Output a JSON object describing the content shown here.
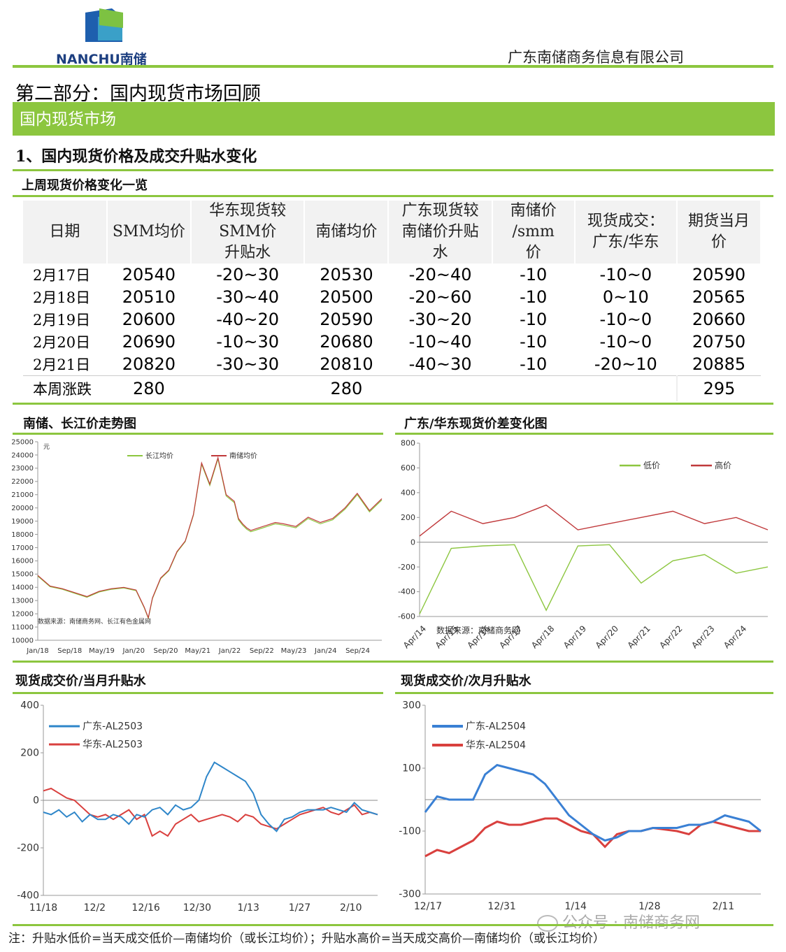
{
  "header": {
    "logo_text": "NANCHU南储",
    "company": "广东南储商务信息有限公司"
  },
  "part_title": "第二部分：国内现货市场回顾",
  "banner": "国内现货市场",
  "section1_title": "1、国内现货价格及成交升贴水变化",
  "table_title": "上周现货价格变化一览",
  "table": {
    "headers": [
      "日期",
      "SMM均价",
      "华东现货较SMM价升贴水",
      "南储均价",
      "广东现货较南储价升贴水",
      "南储价/smm价",
      "现货成交：广东/华东",
      "期货当月价"
    ],
    "rows": [
      [
        "2月17日",
        "20540",
        "-20~30",
        "20530",
        "-20~40",
        "-10",
        "-10~0",
        "20590"
      ],
      [
        "2月18日",
        "20510",
        "-30~40",
        "20500",
        "-20~60",
        "-10",
        "0~10",
        "20565"
      ],
      [
        "2月19日",
        "20600",
        "-40~20",
        "20590",
        "-30~20",
        "-10",
        "-10~0",
        "20660"
      ],
      [
        "2月20日",
        "20690",
        "-10~30",
        "20680",
        "-10~40",
        "-10",
        "-10~0",
        "20750"
      ],
      [
        "2月21日",
        "20820",
        "-30~30",
        "20810",
        "-40~30",
        "-10",
        "-20~10",
        "20885"
      ]
    ],
    "sum_row": [
      "本周涨跌",
      "280",
      "",
      "280",
      "",
      "",
      "",
      "295"
    ]
  },
  "chart_titles": {
    "c1": "南储、长江价走势图",
    "c2": "广东/华东现货价差变化图",
    "c3": "现货成交价/当月升贴水",
    "c4": "现货成交价/次月升贴水"
  },
  "footnote": "注：升贴水低价=当天成交低价—南储均价（或长江均价）；升贴水高价=当天成交高价—南储均价（或长江均价）",
  "watermark": "公众号 · 南储商务网",
  "chart_data": [
    {
      "type": "line",
      "title": "南储、长江价走势图",
      "unit_label": "元",
      "source_note": "数据来源：南储商务网、长江有色金属网",
      "ylim": [
        10000,
        25000
      ],
      "yticks": [
        10000,
        11000,
        12000,
        13000,
        14000,
        15000,
        16000,
        17000,
        18000,
        19000,
        20000,
        21000,
        22000,
        23000,
        24000,
        25000
      ],
      "x_ticks": [
        "Jan/18",
        "Sep/18",
        "May/19",
        "Jan/20",
        "Sep/20",
        "May/21",
        "Jan/22",
        "Sep/22",
        "May/23",
        "Jan/24",
        "Sep/24"
      ],
      "legend": [
        "长江均价",
        "南储均价"
      ],
      "colors": {
        "长江均价": "#8cc63f",
        "南储均价": "#c0393b"
      },
      "x": [
        0,
        3,
        6,
        9,
        12,
        15,
        18,
        21,
        24,
        26,
        27,
        28,
        30,
        32,
        34,
        36,
        38,
        40,
        42,
        44,
        46,
        48,
        49,
        50,
        51,
        52,
        54,
        56,
        58,
        60,
        63,
        66,
        69,
        72,
        75,
        78,
        81,
        84
      ],
      "series": [
        {
          "name": "南储均价",
          "values": [
            14900,
            14100,
            13900,
            13600,
            13300,
            13700,
            13900,
            14000,
            13800,
            12500,
            11700,
            13200,
            14700,
            15300,
            16700,
            17500,
            19500,
            23400,
            21800,
            23800,
            21000,
            20500,
            19200,
            18800,
            18500,
            18300,
            18500,
            18700,
            18900,
            18800,
            18600,
            19300,
            18900,
            19200,
            20000,
            21100,
            19800,
            20700
          ]
        },
        {
          "name": "长江均价",
          "values": [
            14850,
            14050,
            13850,
            13550,
            13250,
            13650,
            13850,
            13950,
            13750,
            12450,
            11650,
            13150,
            14650,
            15250,
            16650,
            17450,
            19450,
            23300,
            21700,
            23700,
            20900,
            20400,
            19100,
            18700,
            18400,
            18200,
            18400,
            18600,
            18800,
            18700,
            18500,
            19200,
            18800,
            19100,
            19900,
            21000,
            19700,
            20600
          ]
        }
      ]
    },
    {
      "type": "line",
      "title": "广东/华东现货价差变化图",
      "source_note": "数据来源：南储商务网",
      "ylim": [
        -600,
        800
      ],
      "yticks": [
        -600,
        -400,
        -200,
        0,
        200,
        400,
        600,
        800
      ],
      "x_ticks": [
        "Apr/14",
        "Apr/15",
        "Apr/16",
        "Apr/17",
        "Apr/18",
        "Apr/19",
        "Apr/20",
        "Apr/21",
        "Apr/22",
        "Apr/23",
        "Apr/24"
      ],
      "legend": [
        "低价",
        "高价"
      ],
      "colors": {
        "低价": "#8cc63f",
        "高价": "#c0393b"
      },
      "x": [
        0,
        1,
        2,
        3,
        4,
        5,
        6,
        7,
        8,
        9,
        10,
        11
      ],
      "series": [
        {
          "name": "高价",
          "values": [
            50,
            250,
            150,
            200,
            300,
            100,
            150,
            200,
            250,
            150,
            200,
            100
          ]
        },
        {
          "name": "低价",
          "values": [
            -580,
            -50,
            -30,
            -20,
            -550,
            -30,
            -20,
            -330,
            -150,
            -100,
            -250,
            -200
          ]
        }
      ]
    },
    {
      "type": "line",
      "title": "现货成交价/当月升贴水",
      "ylim": [
        -400,
        400
      ],
      "yticks": [
        -400,
        -200,
        0,
        200,
        400
      ],
      "x_ticks": [
        "11/18",
        "12/2",
        "12/16",
        "12/30",
        "1/13",
        "1/27",
        "2/10"
      ],
      "legend": [
        "广东-AL2503",
        "华东-AL2503"
      ],
      "colors": {
        "广东-AL2503": "#2e86c9",
        "华东-AL2503": "#d9403e"
      },
      "x": [
        0,
        2,
        4,
        6,
        8,
        10,
        12,
        14,
        16,
        18,
        20,
        22,
        24,
        26,
        28,
        30,
        32,
        34,
        36,
        38,
        40,
        42,
        44,
        46,
        48,
        50,
        52,
        54,
        56,
        58,
        60,
        62,
        64,
        66,
        68,
        70,
        72,
        74,
        76,
        78,
        80,
        82,
        84,
        86
      ],
      "series": [
        {
          "name": "广东-AL2503",
          "values": [
            -50,
            -60,
            -40,
            -70,
            -50,
            -90,
            -60,
            -80,
            -80,
            -60,
            -70,
            -100,
            -60,
            -70,
            -40,
            -30,
            -60,
            -20,
            -40,
            -30,
            0,
            100,
            160,
            140,
            120,
            100,
            80,
            30,
            -60,
            -100,
            -130,
            -80,
            -70,
            -50,
            -40,
            -40,
            -40,
            -30,
            -40,
            -50,
            -10,
            -40,
            -50,
            -60
          ]
        },
        {
          "name": "华东-AL2503",
          "values": [
            40,
            50,
            30,
            10,
            0,
            -30,
            -60,
            -70,
            -60,
            -80,
            -60,
            -40,
            -80,
            -60,
            -150,
            -130,
            -150,
            -100,
            -80,
            -60,
            -90,
            -80,
            -70,
            -60,
            -70,
            -90,
            -60,
            -70,
            -100,
            -110,
            -120,
            -100,
            -80,
            -60,
            -50,
            -40,
            -30,
            -50,
            -60,
            -40,
            -20,
            -60,
            -50,
            -60
          ]
        }
      ]
    },
    {
      "type": "line",
      "title": "现货成交价/次月升贴水",
      "ylim": [
        -300,
        300
      ],
      "yticks": [
        -300,
        -100,
        100,
        300
      ],
      "x_ticks": [
        "12/17",
        "12/31",
        "1/14",
        "1/28",
        "2/11"
      ],
      "legend": [
        "广东-AL2504",
        "华东-AL2504"
      ],
      "colors": {
        "广东-AL2504": "#3a80d4",
        "华东-AL2504": "#d9403e"
      },
      "x": [
        0,
        1,
        2,
        3,
        4,
        5,
        6,
        7,
        8,
        9,
        10,
        11,
        12,
        13,
        14,
        15,
        16,
        17,
        18,
        19,
        20,
        21,
        22,
        23,
        24,
        25,
        26,
        27,
        28
      ],
      "series": [
        {
          "name": "广东-AL2504",
          "values": [
            -40,
            10,
            0,
            0,
            0,
            80,
            110,
            100,
            90,
            80,
            50,
            0,
            -50,
            -80,
            -110,
            -130,
            -120,
            -100,
            -100,
            -90,
            -90,
            -90,
            -80,
            -80,
            -70,
            -50,
            -60,
            -70,
            -100
          ]
        },
        {
          "name": "华东-AL2504",
          "values": [
            -180,
            -160,
            -170,
            -150,
            -130,
            -90,
            -70,
            -80,
            -80,
            -70,
            -60,
            -60,
            -80,
            -100,
            -110,
            -150,
            -110,
            -100,
            -100,
            -90,
            -95,
            -100,
            -110,
            -80,
            -70,
            -80,
            -90,
            -100,
            -100
          ]
        }
      ]
    }
  ]
}
